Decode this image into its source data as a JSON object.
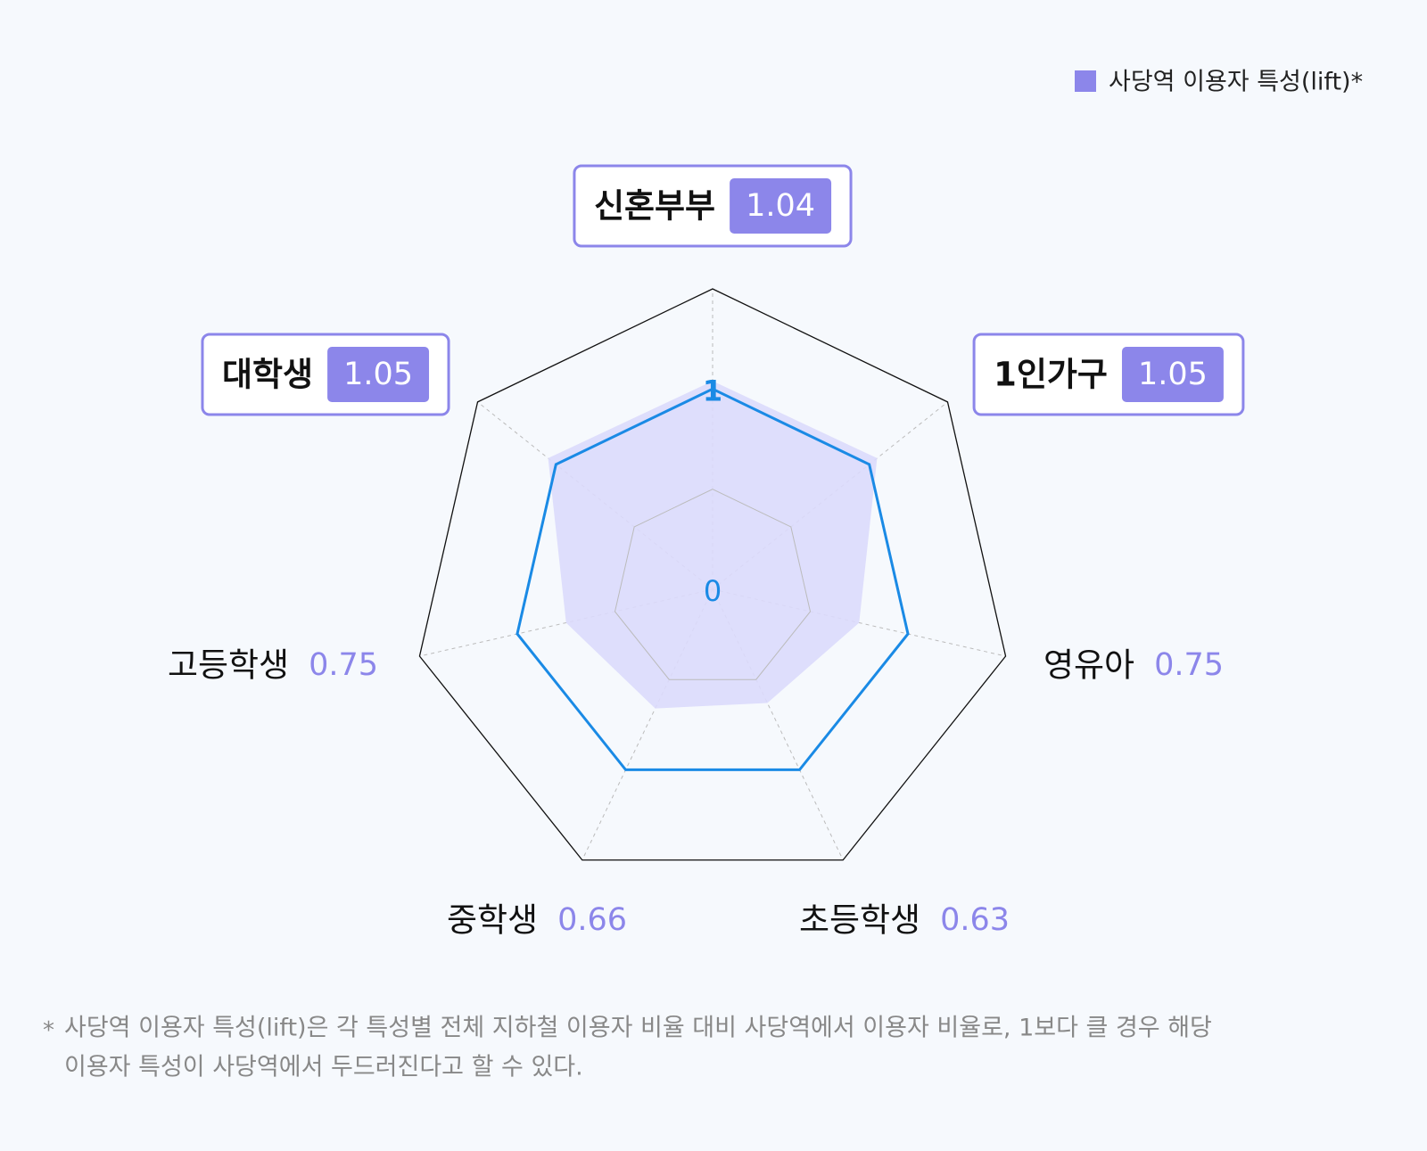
{
  "chart_data": {
    "type": "radar",
    "legend": {
      "name": "사당역 이용자 특성(lift)*",
      "color": "#8c86ea",
      "position": "top-right"
    },
    "categories": [
      "신혼부부",
      "1인가구",
      "영유아",
      "초등학생",
      "중학생",
      "고등학생",
      "대학생"
    ],
    "values": [
      1.04,
      1.05,
      0.75,
      0.63,
      0.66,
      0.75,
      1.05
    ],
    "fill_color": "#dcdafc",
    "highlight_color": "#8c86ea",
    "highlight_above": 1,
    "rlim": [
      0,
      1.5
    ],
    "rticks": [
      0,
      1
    ],
    "minor_rings": [
      0.5
    ],
    "reference_color": "#1a8ae5",
    "note_marker": "*",
    "note": [
      "사당역 이용자 특성(lift)은 각 특성별 전체 지하철 이용자 비율 대비 사당역에서 이용자 비율로, 1보다 클 경우 해당",
      "이용자 특성이 사당역에서 두드러진다고 할 수 있다."
    ]
  }
}
